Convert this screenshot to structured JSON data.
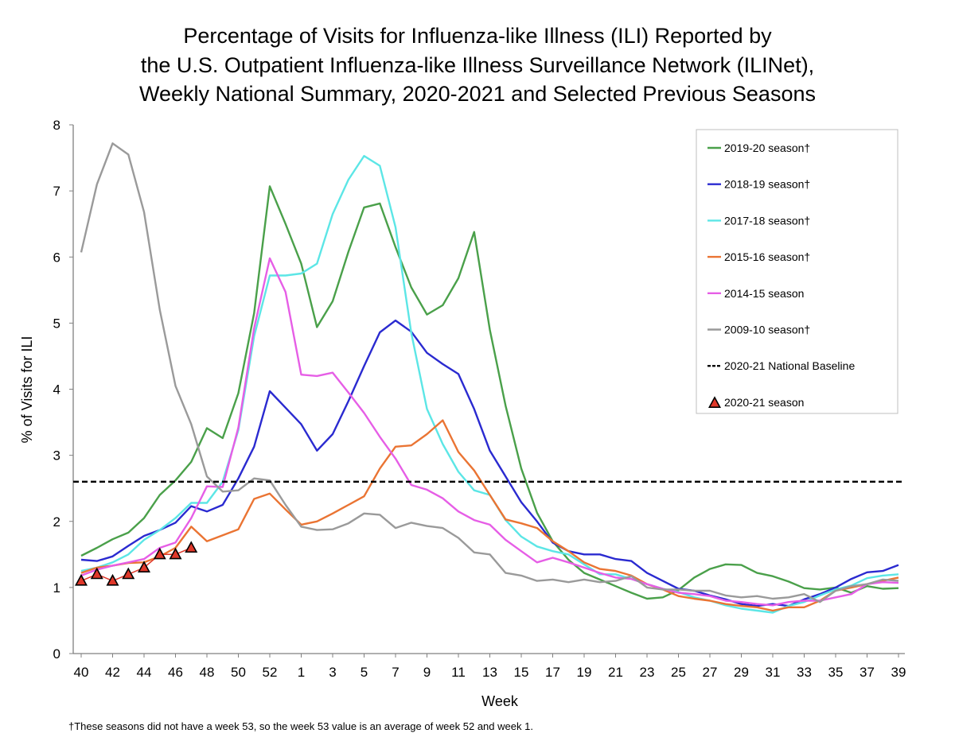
{
  "title_lines": [
    "Percentage of Visits for Influenza-like Illness (ILI) Reported by",
    "the U.S. Outpatient Influenza-like Illness Surveillance Network (ILINet),",
    "Weekly National Summary, 2020-2021 and Selected Previous Seasons"
  ],
  "footnote": "†These seasons did not have a week 53, so the week 53 value is an average of week 52 and week 1.",
  "chart_data": {
    "type": "line",
    "xlabel": "Week",
    "ylabel": "% of Visits for ILI",
    "ylim": [
      0,
      8
    ],
    "yticks": [
      0,
      1,
      2,
      3,
      4,
      5,
      6,
      7,
      8
    ],
    "weeks": [
      40,
      41,
      42,
      43,
      44,
      45,
      46,
      47,
      48,
      49,
      50,
      51,
      52,
      53,
      1,
      2,
      3,
      4,
      5,
      6,
      7,
      8,
      9,
      10,
      11,
      12,
      13,
      14,
      15,
      16,
      17,
      18,
      19,
      20,
      21,
      22,
      23,
      24,
      25,
      26,
      27,
      28,
      29,
      30,
      31,
      32,
      33,
      34,
      35,
      36,
      37,
      38,
      39
    ],
    "xtick_labels": [
      "40",
      "42",
      "44",
      "46",
      "48",
      "50",
      "52",
      "1",
      "3",
      "5",
      "7",
      "9",
      "11",
      "13",
      "15",
      "17",
      "19",
      "21",
      "23",
      "25",
      "27",
      "29",
      "31",
      "33",
      "35",
      "37",
      "39"
    ],
    "grid": false,
    "legend_position": "top-right",
    "series": [
      {
        "name": "2019-20 season†",
        "color": "#4aa04a",
        "style": "line",
        "values": [
          1.48,
          1.6,
          1.73,
          1.83,
          2.05,
          2.4,
          2.62,
          2.9,
          3.41,
          3.26,
          3.94,
          5.15,
          7.07,
          6.5,
          5.9,
          4.94,
          5.33,
          6.08,
          6.75,
          6.81,
          6.15,
          5.54,
          5.13,
          5.27,
          5.68,
          6.38,
          4.9,
          3.75,
          2.8,
          2.13,
          1.7,
          1.42,
          1.22,
          1.12,
          1.02,
          0.92,
          0.83,
          0.85,
          0.96,
          1.15,
          1.28,
          1.35,
          1.34,
          1.22,
          1.17,
          1.09,
          0.99,
          0.97,
          1.0,
          0.92,
          1.02,
          0.98,
          0.99
        ]
      },
      {
        "name": "2018-19 season†",
        "color": "#2a2ad0",
        "style": "line",
        "values": [
          1.42,
          1.4,
          1.47,
          1.63,
          1.78,
          1.87,
          1.98,
          2.23,
          2.15,
          2.25,
          2.65,
          3.13,
          3.97,
          3.72,
          3.47,
          3.07,
          3.32,
          3.82,
          4.35,
          4.86,
          5.04,
          4.87,
          4.55,
          4.38,
          4.23,
          3.7,
          3.07,
          2.68,
          2.29,
          2.0,
          1.68,
          1.55,
          1.5,
          1.5,
          1.43,
          1.4,
          1.22,
          1.1,
          0.98,
          0.95,
          0.88,
          0.82,
          0.75,
          0.72,
          0.75,
          0.72,
          0.82,
          0.9,
          1.0,
          1.13,
          1.23,
          1.25,
          1.34
        ]
      },
      {
        "name": "2017-18 season†",
        "color": "#5ce6e6",
        "style": "line",
        "values": [
          1.25,
          1.3,
          1.38,
          1.5,
          1.72,
          1.87,
          2.05,
          2.28,
          2.28,
          2.6,
          3.38,
          4.8,
          5.72,
          5.72,
          5.75,
          5.9,
          6.65,
          7.17,
          7.53,
          7.38,
          6.45,
          4.85,
          3.7,
          3.17,
          2.75,
          2.47,
          2.4,
          2.02,
          1.77,
          1.62,
          1.55,
          1.5,
          1.35,
          1.2,
          1.2,
          1.13,
          1.05,
          0.98,
          0.93,
          0.85,
          0.8,
          0.73,
          0.68,
          0.65,
          0.62,
          0.72,
          0.78,
          0.88,
          0.97,
          1.03,
          1.14,
          1.18,
          1.2
        ]
      },
      {
        "name": "2015-16 season†",
        "color": "#ea7433",
        "style": "line",
        "values": [
          1.22,
          1.3,
          1.33,
          1.37,
          1.38,
          1.47,
          1.6,
          1.92,
          1.7,
          1.79,
          1.88,
          2.34,
          2.42,
          2.18,
          1.95,
          2.0,
          2.12,
          2.25,
          2.38,
          2.8,
          3.13,
          3.15,
          3.32,
          3.53,
          3.05,
          2.77,
          2.4,
          2.03,
          1.97,
          1.9,
          1.7,
          1.55,
          1.38,
          1.28,
          1.25,
          1.18,
          1.05,
          0.97,
          0.87,
          0.83,
          0.8,
          0.75,
          0.72,
          0.7,
          0.65,
          0.7,
          0.7,
          0.8,
          0.95,
          1.0,
          1.05,
          1.1,
          1.15
        ]
      },
      {
        "name": "2014-15 season",
        "color": "#e65ee6",
        "style": "line",
        "values": [
          1.18,
          1.27,
          1.33,
          1.38,
          1.43,
          1.6,
          1.68,
          2.05,
          2.53,
          2.52,
          3.42,
          4.92,
          5.98,
          5.47,
          4.22,
          4.2,
          4.25,
          3.95,
          3.64,
          3.28,
          2.95,
          2.55,
          2.48,
          2.35,
          2.15,
          2.02,
          1.95,
          1.72,
          1.55,
          1.38,
          1.45,
          1.38,
          1.3,
          1.22,
          1.15,
          1.13,
          1.05,
          0.98,
          0.92,
          0.9,
          0.87,
          0.8,
          0.78,
          0.75,
          0.73,
          0.78,
          0.8,
          0.8,
          0.85,
          0.9,
          1.05,
          1.08,
          1.07
        ]
      },
      {
        "name": "2009-10 season†",
        "color": "#9a9a9a",
        "style": "line",
        "values": [
          6.07,
          7.1,
          7.72,
          7.55,
          6.68,
          5.2,
          4.05,
          3.47,
          2.68,
          2.45,
          2.47,
          2.65,
          2.62,
          2.25,
          1.92,
          1.87,
          1.88,
          1.97,
          2.12,
          2.1,
          1.9,
          1.98,
          1.93,
          1.9,
          1.75,
          1.53,
          1.5,
          1.22,
          1.18,
          1.1,
          1.12,
          1.08,
          1.12,
          1.08,
          1.1,
          1.17,
          1.0,
          0.97,
          0.97,
          0.95,
          0.95,
          0.88,
          0.85,
          0.87,
          0.83,
          0.85,
          0.9,
          0.78,
          0.95,
          1.02,
          1.05,
          1.12,
          1.1
        ]
      },
      {
        "name": "2020-21 National Baseline",
        "color": "#000000",
        "style": "dashed",
        "value": 2.6
      },
      {
        "name": "2020-21 season",
        "color": "#000000",
        "fill": "#e0382a",
        "style": "triangle",
        "values": [
          1.1,
          1.2,
          1.1,
          1.2,
          1.3,
          1.5,
          1.5,
          1.6
        ]
      }
    ]
  }
}
